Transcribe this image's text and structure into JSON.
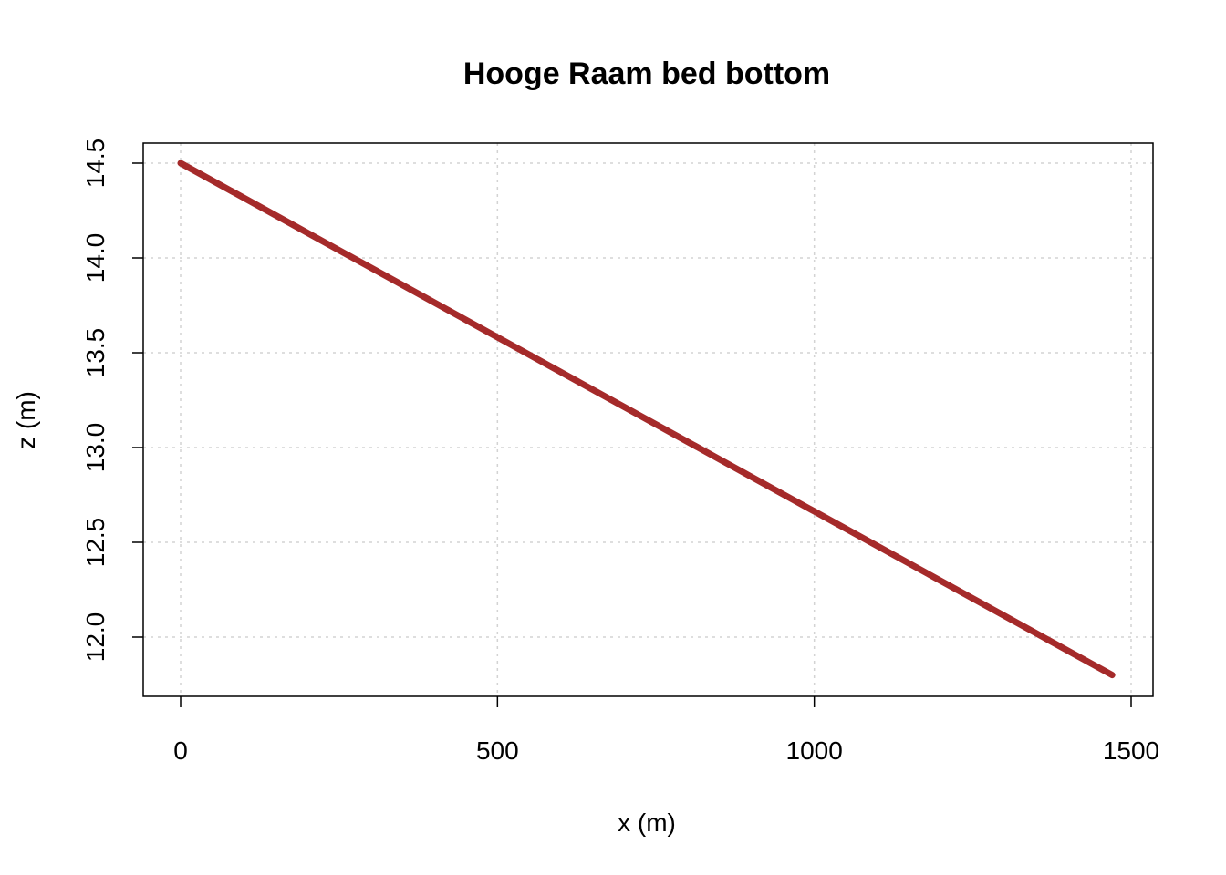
{
  "chart_data": {
    "type": "line",
    "title": "Hooge Raam bed bottom",
    "xlabel": "x (m)",
    "ylabel": "z (m)",
    "xlim": [
      0,
      1500
    ],
    "ylim": [
      11.8,
      14.5
    ],
    "xticks": [
      0,
      500,
      1000,
      1500
    ],
    "xtick_labels": [
      "0",
      "500",
      "1000",
      "1500"
    ],
    "yticks": [
      12.0,
      12.5,
      13.0,
      13.5,
      14.0,
      14.5
    ],
    "ytick_labels": [
      "12.0",
      "12.5",
      "13.0",
      "13.5",
      "14.0",
      "14.5"
    ],
    "grid": true,
    "series": [
      {
        "color": "#A52A2A",
        "x": [
          0,
          1470
        ],
        "y": [
          14.5,
          11.8
        ]
      }
    ]
  }
}
